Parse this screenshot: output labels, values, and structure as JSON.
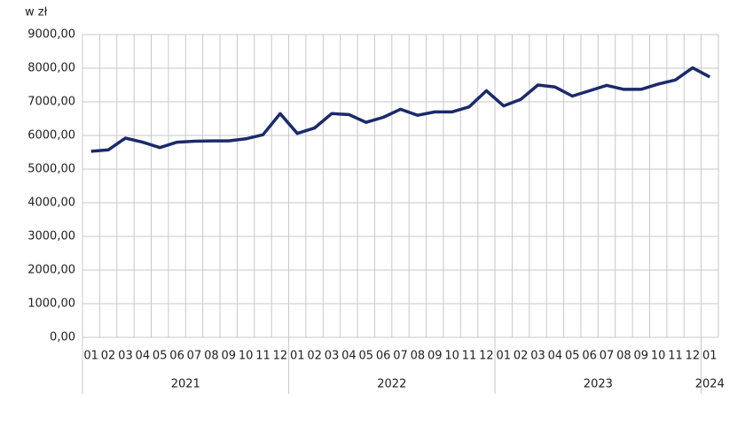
{
  "chart_data": {
    "type": "line",
    "y_label": "w zł",
    "groups": [
      {
        "label": "2021",
        "months": [
          "01",
          "02",
          "03",
          "04",
          "05",
          "06",
          "07",
          "08",
          "09",
          "10",
          "11",
          "12"
        ]
      },
      {
        "label": "2022",
        "months": [
          "01",
          "02",
          "03",
          "04",
          "05",
          "06",
          "07",
          "08",
          "09",
          "10",
          "11",
          "12"
        ]
      },
      {
        "label": "2023",
        "months": [
          "01",
          "02",
          "03",
          "04",
          "05",
          "06",
          "07",
          "08",
          "09",
          "10",
          "11",
          "12"
        ]
      },
      {
        "label": "2024",
        "months": [
          "01"
        ]
      }
    ],
    "series": [
      {
        "color": "#1b2a6b",
        "values": [
          5530,
          5570,
          5920,
          5800,
          5640,
          5800,
          5830,
          5840,
          5840,
          5900,
          6020,
          6650,
          6060,
          6220,
          6650,
          6620,
          6390,
          6540,
          6780,
          6600,
          6700,
          6700,
          6850,
          7330,
          6880,
          7070,
          7500,
          7440,
          7170,
          7330,
          7490,
          7370,
          7370,
          7530,
          7650,
          8010,
          7740
        ]
      }
    ],
    "ylim": [
      0,
      9000
    ],
    "yticks": [
      {
        "value": 0,
        "label": "0,00"
      },
      {
        "value": 1000,
        "label": "1000,00"
      },
      {
        "value": 2000,
        "label": "2000,00"
      },
      {
        "value": 3000,
        "label": "3000,00"
      },
      {
        "value": 4000,
        "label": "4000,00"
      },
      {
        "value": 5000,
        "label": "5000,00"
      },
      {
        "value": 6000,
        "label": "6000,00"
      },
      {
        "value": 7000,
        "label": "7000,00"
      },
      {
        "value": 8000,
        "label": "8000,00"
      },
      {
        "value": 9000,
        "label": "9000,00"
      }
    ],
    "grid": true
  }
}
